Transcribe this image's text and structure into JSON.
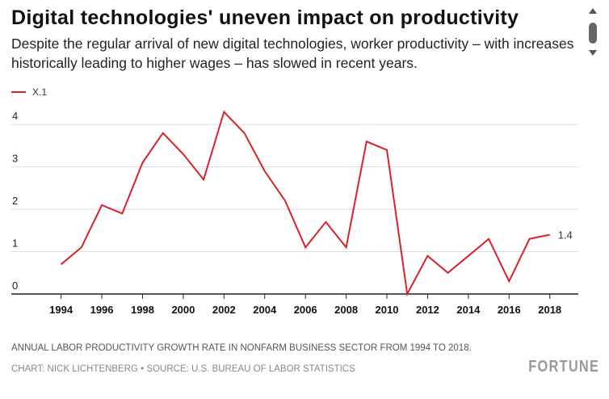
{
  "header": {
    "title": "Digital technologies' uneven impact on productivity",
    "subtitle": "Despite the regular arrival of new digital technologies, worker productivity – with increases historically leading to higher wages – has slowed in recent years."
  },
  "legend": {
    "label": "X.1"
  },
  "footer": {
    "note": "ANNUAL LABOR PRODUCTIVITY GROWTH RATE IN NONFARM BUSINESS SECTOR FROM 1994 TO 2018.",
    "credit": "CHART: NICK LICHTENBERG • SOURCE: U.S. BUREAU OF LABOR STATISTICS",
    "brand": "FORTUNE"
  },
  "colors": {
    "line": "#d7222a",
    "grid": "#dddddd",
    "axis": "#222222"
  },
  "chart_data": {
    "type": "line",
    "x": [
      1994,
      1995,
      1996,
      1997,
      1998,
      1999,
      2000,
      2001,
      2002,
      2003,
      2004,
      2005,
      2006,
      2007,
      2008,
      2009,
      2010,
      2011,
      2012,
      2013,
      2014,
      2015,
      2016,
      2017,
      2018
    ],
    "series": [
      {
        "name": "X.1",
        "values": [
          0.7,
          1.1,
          2.1,
          1.9,
          3.1,
          3.8,
          3.3,
          2.7,
          4.3,
          3.8,
          2.9,
          2.2,
          1.1,
          1.7,
          1.1,
          3.6,
          3.4,
          0.0,
          0.9,
          0.5,
          0.9,
          1.3,
          0.3,
          1.3,
          1.4
        ]
      }
    ],
    "xticks": [
      1994,
      1996,
      1998,
      2000,
      2002,
      2004,
      2006,
      2008,
      2010,
      2012,
      2014,
      2016,
      2018
    ],
    "yticks": [
      0,
      1,
      2,
      3,
      4
    ],
    "xlim": [
      1991,
      2019.4
    ],
    "ylim": [
      0,
      4.5
    ],
    "end_label": "1.4",
    "grid": true,
    "legend_position": "top-left"
  }
}
